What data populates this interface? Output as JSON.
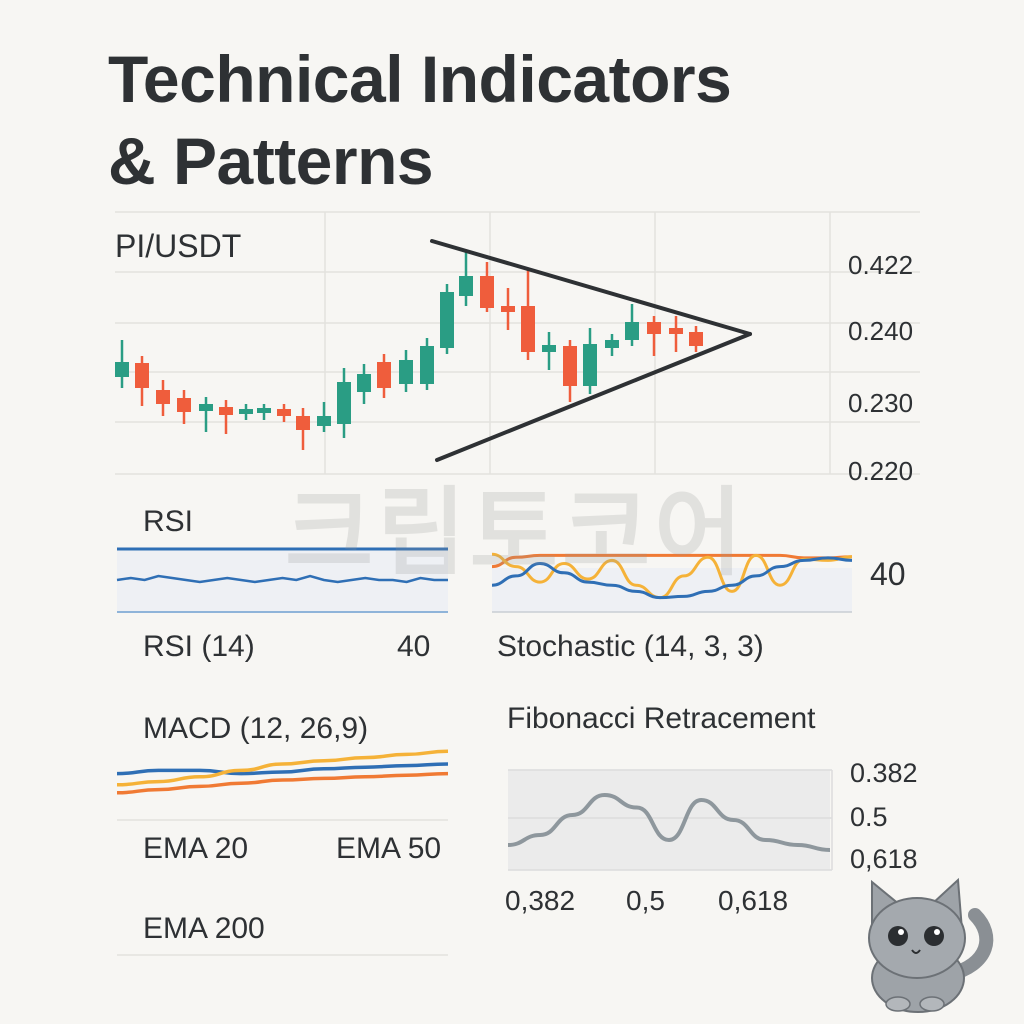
{
  "title_line1": "Technical Indicators",
  "title_line2": "& Patterns",
  "watermark": "크립토코어",
  "colors": {
    "up": "#2a9d84",
    "down": "#ef5d3c",
    "blue": "#2f6fb5",
    "orange": "#f07a34",
    "yellow": "#f5b238",
    "gray": "#8e979d",
    "ink": "#2e3134"
  },
  "chart_data": [
    {
      "type": "candlestick",
      "title": "PI/USDT",
      "yticks": [
        "0.422",
        "0.240",
        "0.230",
        "0.220"
      ],
      "pattern": "symmetrical triangle",
      "candles_direction": [
        "up",
        "down",
        "down",
        "down",
        "up",
        "down",
        "up",
        "up",
        "down",
        "down",
        "up",
        "up",
        "up",
        "down",
        "up",
        "up",
        "up",
        "up",
        "down",
        "down",
        "down",
        "up",
        "down",
        "up",
        "up",
        "up",
        "down",
        "down",
        "down"
      ]
    },
    {
      "type": "line",
      "title": "RSI",
      "footer_label": "RSI (14)",
      "footer_value": "40",
      "series": [
        {
          "values": [
            40,
            41,
            40,
            42,
            41,
            40,
            39,
            40,
            41,
            40,
            39,
            40,
            41,
            40,
            42,
            40,
            39,
            40,
            41,
            40,
            40,
            39,
            41,
            40,
            40
          ]
        }
      ]
    },
    {
      "type": "line",
      "title": "Stochastic (14, 3, 3)",
      "value": "40",
      "series": [
        {
          "color": "orange",
          "values": [
            70,
            85,
            88,
            88,
            88,
            88,
            88,
            88,
            88,
            88,
            88,
            88,
            88,
            84,
            84,
            86
          ]
        },
        {
          "color": "yellow",
          "values": [
            90,
            70,
            45,
            75,
            50,
            80,
            40,
            20,
            55,
            85,
            30,
            88,
            40,
            82,
            80,
            86
          ]
        },
        {
          "color": "blue",
          "values": [
            40,
            55,
            75,
            60,
            45,
            40,
            30,
            20,
            22,
            30,
            40,
            55,
            70,
            80,
            84,
            80
          ]
        }
      ]
    },
    {
      "type": "line",
      "title": "MACD (12, 26,9)",
      "legend": [
        "EMA 20",
        "EMA 50",
        "EMA 200"
      ],
      "series": [
        {
          "color": "blue",
          "values": [
            58,
            62,
            62,
            58,
            60,
            64,
            66,
            68,
            70
          ]
        },
        {
          "color": "yellow",
          "values": [
            44,
            48,
            54,
            62,
            70,
            74,
            78,
            82,
            86
          ]
        },
        {
          "color": "orange",
          "values": [
            34,
            38,
            42,
            46,
            50,
            52,
            54,
            56,
            58
          ]
        }
      ]
    },
    {
      "type": "area",
      "title": "Fibonacci Retracement",
      "yticks": [
        "0.382",
        "0.5",
        "0,618"
      ],
      "xticks": [
        "0,382",
        "0,5",
        "0,618"
      ],
      "series": [
        {
          "values": [
            0.4,
            0.44,
            0.52,
            0.6,
            0.55,
            0.42,
            0.58,
            0.5,
            0.42,
            0.4,
            0.38
          ]
        }
      ]
    }
  ]
}
